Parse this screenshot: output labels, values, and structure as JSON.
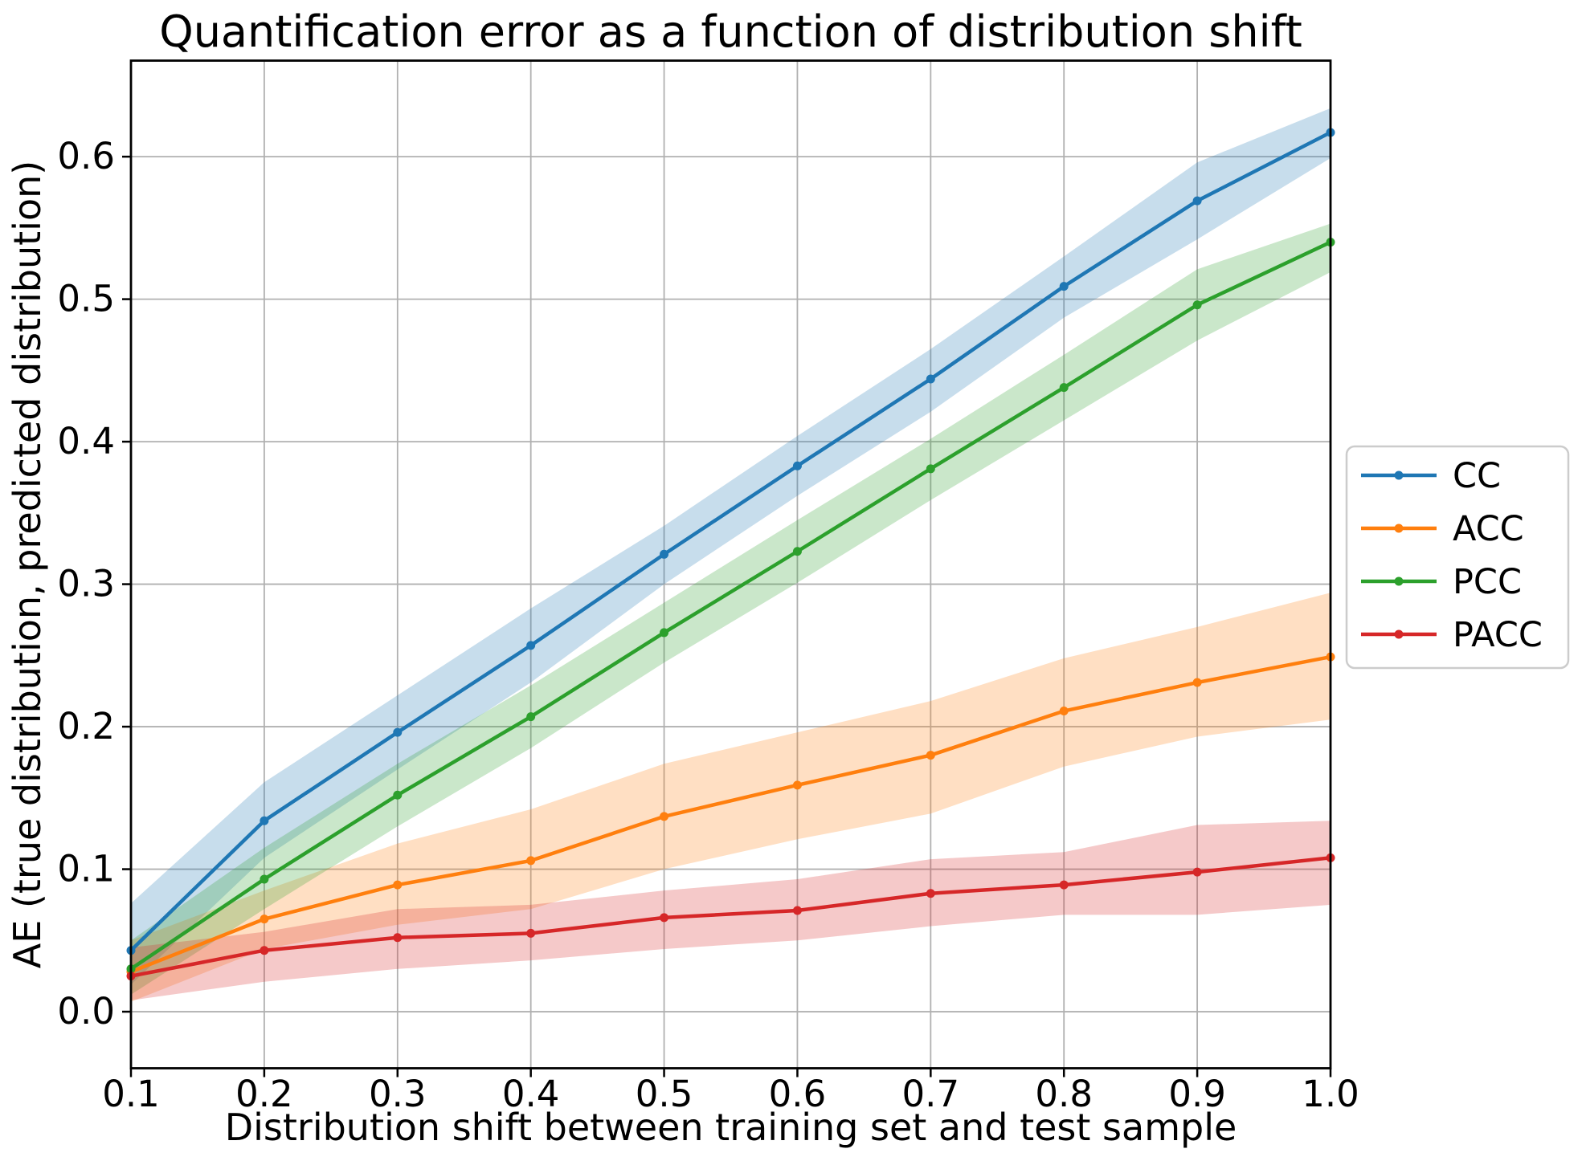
{
  "chart_data": {
    "type": "line",
    "title": "Quantification error as a function of distribution shift",
    "xlabel": "Distribution shift between training set and test sample",
    "ylabel": "AE (true distribution, predicted distribution)",
    "x": [
      0.1,
      0.2,
      0.3,
      0.4,
      0.5,
      0.6,
      0.7,
      0.8,
      0.9,
      1.0
    ],
    "x_tick_labels": [
      "0.1",
      "0.2",
      "0.3",
      "0.4",
      "0.5",
      "0.6",
      "0.7",
      "0.8",
      "0.9",
      "1.0"
    ],
    "y_ticks": [
      0.0,
      0.1,
      0.2,
      0.3,
      0.4,
      0.5,
      0.6
    ],
    "y_tick_labels": [
      "0.0",
      "0.1",
      "0.2",
      "0.3",
      "0.4",
      "0.5",
      "0.6"
    ],
    "xlim": [
      0.1,
      1.0
    ],
    "ylim": [
      -0.0397,
      0.6674
    ],
    "grid": true,
    "grid_color": "#b0b0b0",
    "legend_position": "center-right",
    "band_alpha": 0.25,
    "series": [
      {
        "name": "CC",
        "color": "#1f77b4",
        "values": [
          0.043,
          0.134,
          0.196,
          0.257,
          0.321,
          0.383,
          0.444,
          0.509,
          0.569,
          0.617
        ],
        "band_upper": [
          0.076,
          0.161,
          0.222,
          0.283,
          0.341,
          0.404,
          0.465,
          0.53,
          0.596,
          0.634
        ],
        "band_lower": [
          0.019,
          0.108,
          0.17,
          0.231,
          0.3,
          0.362,
          0.421,
          0.487,
          0.542,
          0.599
        ]
      },
      {
        "name": "ACC",
        "color": "#ff7f0e",
        "values": [
          0.028,
          0.065,
          0.089,
          0.106,
          0.137,
          0.159,
          0.18,
          0.211,
          0.231,
          0.249
        ],
        "band_upper": [
          0.05,
          0.085,
          0.118,
          0.142,
          0.174,
          0.196,
          0.218,
          0.248,
          0.27,
          0.294
        ],
        "band_lower": [
          0.007,
          0.044,
          0.061,
          0.072,
          0.1,
          0.121,
          0.139,
          0.172,
          0.193,
          0.205
        ]
      },
      {
        "name": "PCC",
        "color": "#2ca02c",
        "values": [
          0.03,
          0.093,
          0.152,
          0.207,
          0.266,
          0.323,
          0.381,
          0.438,
          0.496,
          0.54
        ],
        "band_upper": [
          0.05,
          0.115,
          0.174,
          0.229,
          0.287,
          0.345,
          0.402,
          0.461,
          0.521,
          0.553
        ],
        "band_lower": [
          0.012,
          0.072,
          0.13,
          0.185,
          0.245,
          0.301,
          0.359,
          0.415,
          0.471,
          0.519
        ]
      },
      {
        "name": "PACC",
        "color": "#d62728",
        "values": [
          0.025,
          0.043,
          0.052,
          0.055,
          0.066,
          0.071,
          0.083,
          0.089,
          0.098,
          0.108
        ],
        "band_upper": [
          0.045,
          0.056,
          0.072,
          0.075,
          0.085,
          0.093,
          0.107,
          0.112,
          0.131,
          0.134
        ],
        "band_lower": [
          0.008,
          0.021,
          0.03,
          0.036,
          0.044,
          0.05,
          0.06,
          0.068,
          0.068,
          0.075
        ]
      }
    ]
  }
}
